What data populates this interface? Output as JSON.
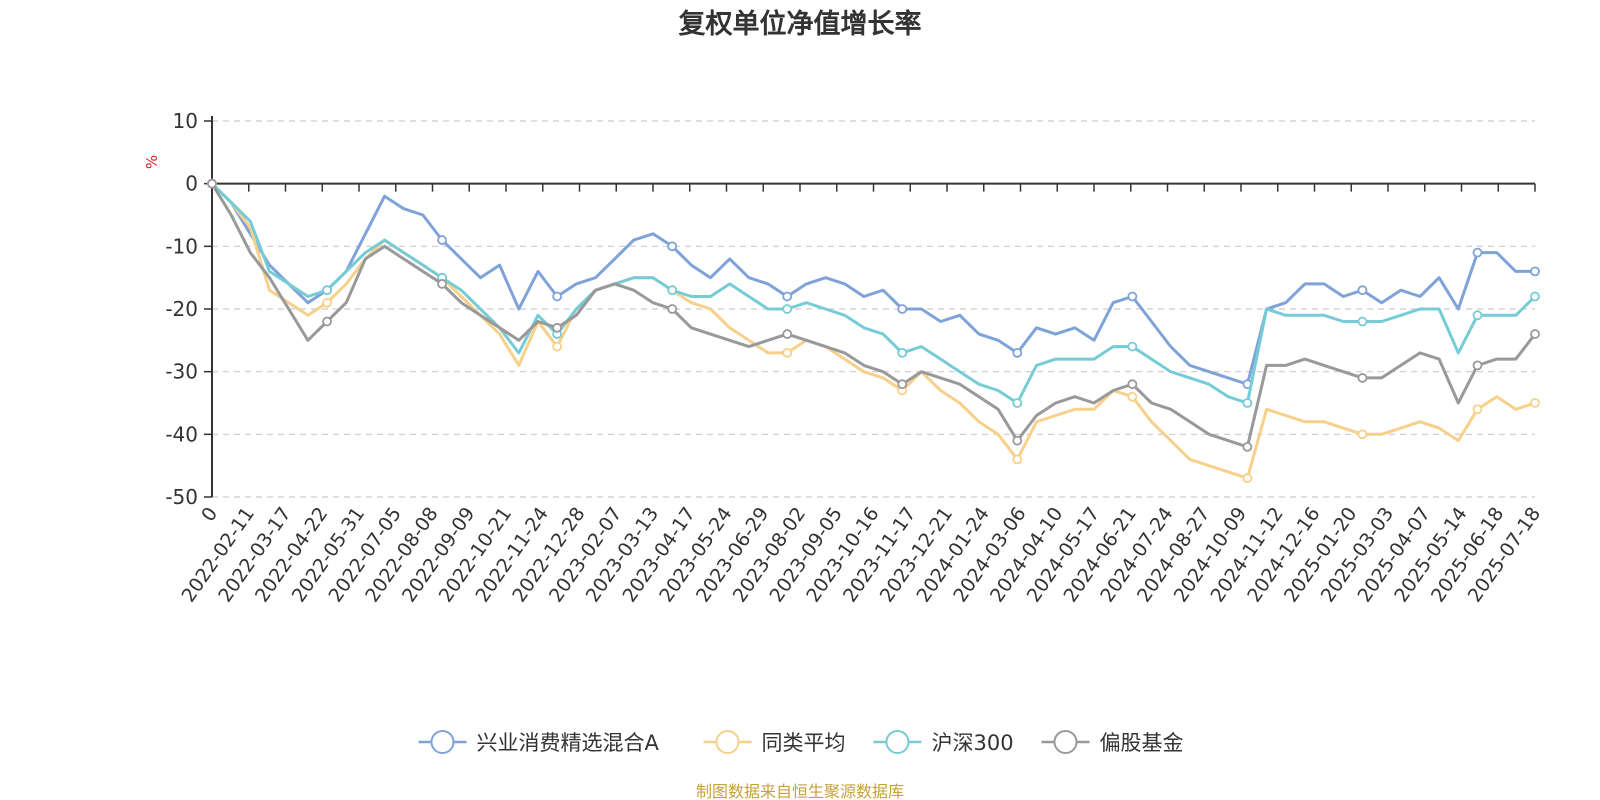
{
  "chart_data": {
    "type": "line",
    "title": "复权单位净值增长率",
    "y_unit": "%",
    "ylim": [
      -50,
      10
    ],
    "y_ticks": [
      "10",
      "0",
      "-10",
      "-20",
      "-30",
      "-40",
      "-50"
    ],
    "y_tick_values": [
      10,
      0,
      -10,
      -20,
      -30,
      -40,
      -50
    ],
    "grid": true,
    "legend_position": "bottom",
    "x_tick_labels": [
      "0",
      "2022-02-11",
      "2022-03-17",
      "2022-04-22",
      "2022-05-31",
      "2022-07-05",
      "2022-08-08",
      "2022-09-09",
      "2022-10-21",
      "2022-11-24",
      "2022-12-28",
      "2023-02-07",
      "2023-03-13",
      "2023-04-17",
      "2023-05-24",
      "2023-06-29",
      "2023-08-02",
      "2023-09-05",
      "2023-10-16",
      "2023-11-17",
      "2023-12-21",
      "2024-01-24",
      "2024-03-06",
      "2024-04-10",
      "2024-05-17",
      "2024-06-21",
      "2024-07-24",
      "2024-08-27",
      "2024-10-09",
      "2024-11-12",
      "2024-12-16",
      "2025-01-20",
      "2025-03-03",
      "2025-04-07",
      "2025-05-14",
      "2025-06-18",
      "2025-07-18"
    ],
    "series": [
      {
        "name": "兴业消费精选混合A",
        "color": "#7fa3d8",
        "values": [
          0,
          -3,
          -8,
          -13,
          -16,
          -19,
          -17,
          -14,
          -8,
          -2,
          -4,
          -5,
          -9,
          -12,
          -15,
          -13,
          -20,
          -14,
          -18,
          -16,
          -15,
          -12,
          -9,
          -8,
          -10,
          -13,
          -15,
          -12,
          -15,
          -16,
          -18,
          -16,
          -15,
          -16,
          -18,
          -17,
          -20,
          -20,
          -22,
          -21,
          -24,
          -25,
          -27,
          -23,
          -24,
          -23,
          -25,
          -19,
          -18,
          -22,
          -26,
          -29,
          -30,
          -31,
          -32,
          -20,
          -19,
          -16,
          -16,
          -18,
          -17,
          -19,
          -17,
          -18,
          -15,
          -20,
          -11,
          -11,
          -14,
          -14
        ]
      },
      {
        "name": "同类平均",
        "color": "#f7d08a",
        "values": [
          0,
          -3,
          -7,
          -17,
          -19,
          -21,
          -19,
          -16,
          -12,
          -9,
          -11,
          -13,
          -15,
          -18,
          -21,
          -24,
          -29,
          -22,
          -26,
          -20,
          -17,
          -16,
          -15,
          -15,
          -17,
          -19,
          -20,
          -23,
          -25,
          -27,
          -27,
          -25,
          -26,
          -28,
          -30,
          -31,
          -33,
          -30,
          -33,
          -35,
          -38,
          -40,
          -44,
          -38,
          -37,
          -36,
          -36,
          -33,
          -34,
          -38,
          -41,
          -44,
          -45,
          -46,
          -47,
          -36,
          -37,
          -38,
          -38,
          -39,
          -40,
          -40,
          -39,
          -38,
          -39,
          -41,
          -36,
          -34,
          -36,
          -35
        ]
      },
      {
        "name": "沪深300",
        "color": "#76ccd6",
        "values": [
          0,
          -3,
          -6,
          -14,
          -16,
          -18,
          -17,
          -14,
          -11,
          -9,
          -11,
          -13,
          -15,
          -17,
          -20,
          -23,
          -27,
          -21,
          -24,
          -20,
          -17,
          -16,
          -15,
          -15,
          -17,
          -18,
          -18,
          -16,
          -18,
          -20,
          -20,
          -19,
          -20,
          -21,
          -23,
          -24,
          -27,
          -26,
          -28,
          -30,
          -32,
          -33,
          -35,
          -29,
          -28,
          -28,
          -28,
          -26,
          -26,
          -28,
          -30,
          -31,
          -32,
          -34,
          -35,
          -20,
          -21,
          -21,
          -21,
          -22,
          -22,
          -22,
          -21,
          -20,
          -20,
          -27,
          -21,
          -21,
          -21,
          -18
        ]
      },
      {
        "name": "偏股基金",
        "color": "#999999",
        "values": [
          0,
          -5,
          -11,
          -15,
          -20,
          -25,
          -22,
          -19,
          -12,
          -10,
          -12,
          -14,
          -16,
          -19,
          -21,
          -23,
          -25,
          -22,
          -23,
          -21,
          -17,
          -16,
          -17,
          -19,
          -20,
          -23,
          -24,
          -25,
          -26,
          -25,
          -24,
          -25,
          -26,
          -27,
          -29,
          -30,
          -32,
          -30,
          -31,
          -32,
          -34,
          -36,
          -41,
          -37,
          -35,
          -34,
          -35,
          -33,
          -32,
          -35,
          -36,
          -38,
          -40,
          -41,
          -42,
          -29,
          -29,
          -28,
          -29,
          -30,
          -31,
          -31,
          -29,
          -27,
          -28,
          -35,
          -29,
          -28,
          -28,
          -24
        ]
      }
    ]
  },
  "source_note": "制图数据来自恒生聚源数据库"
}
